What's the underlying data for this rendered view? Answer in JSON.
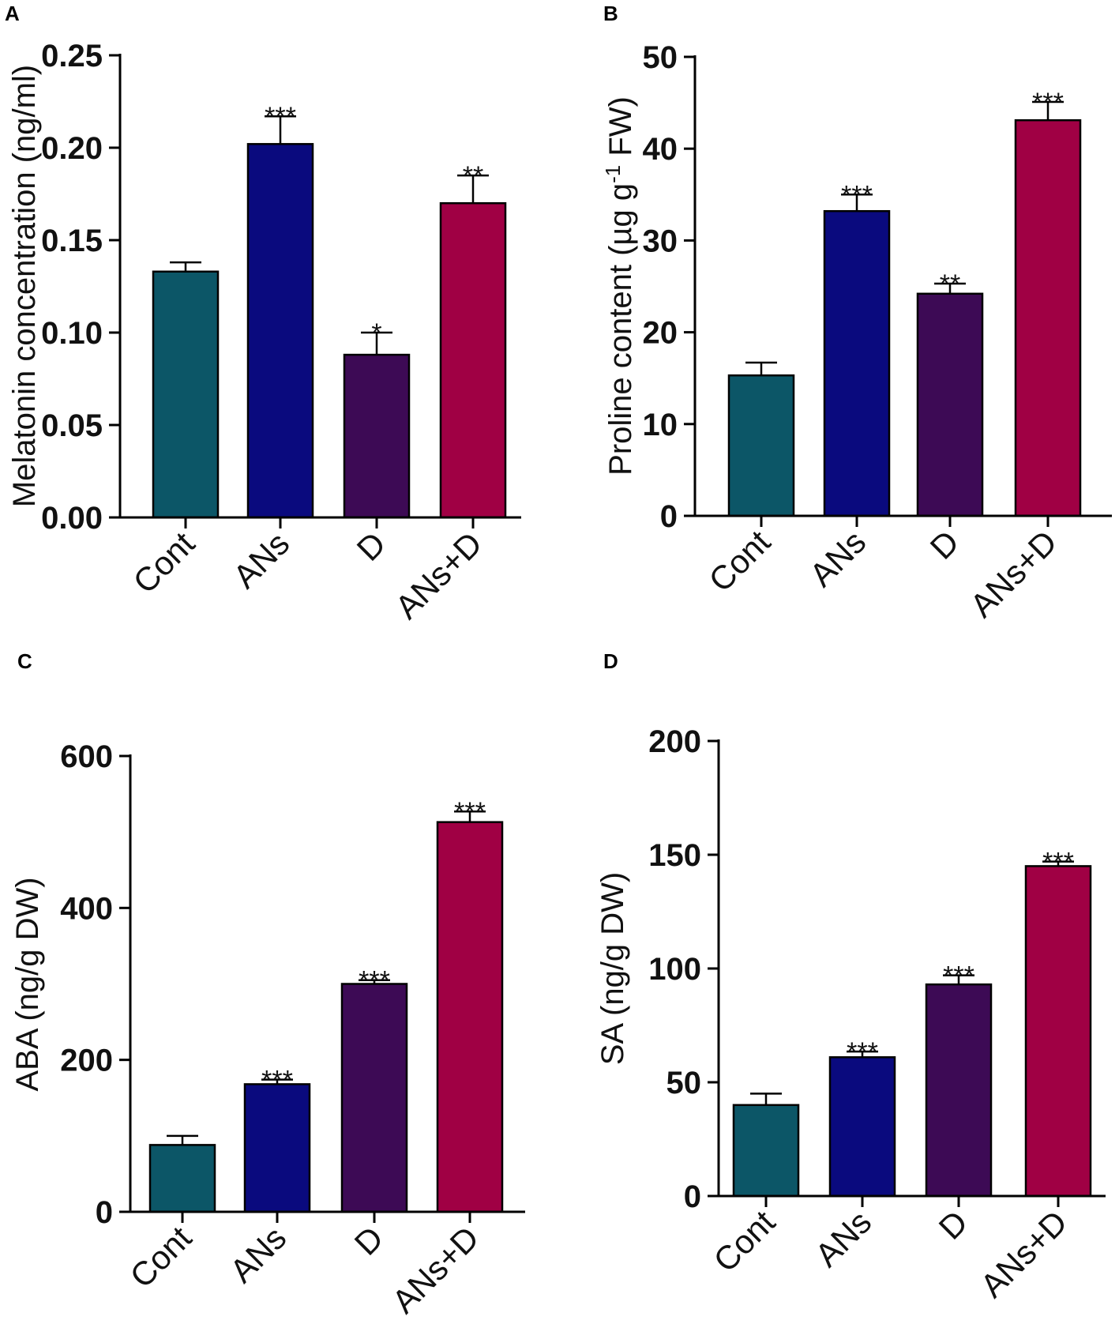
{
  "figure": {
    "categories": [
      "Cont",
      "ANs",
      "D",
      "ANs+D"
    ],
    "bar_colors": [
      "#0c5667",
      "#0a0a7e",
      "#3d0a55",
      "#a00044"
    ]
  },
  "chart_data": [
    {
      "panel": "A",
      "type": "bar",
      "categories": [
        "Cont",
        "ANs",
        "D",
        "ANs+D"
      ],
      "values": [
        0.133,
        0.202,
        0.088,
        0.17
      ],
      "errors": [
        0.005,
        0.015,
        0.012,
        0.015
      ],
      "significance": [
        "",
        "***",
        "*",
        "**"
      ],
      "ylabel": "Melatonin concentration (ng/ml)",
      "ylabel_parts": [
        {
          "text": "Melatonin concentration (ng/ml)",
          "sup": false
        }
      ],
      "ylim": [
        0,
        0.25
      ],
      "yticks": [
        0,
        0.05,
        0.1,
        0.15,
        0.2,
        0.25
      ],
      "ytick_labels": [
        "0.00",
        "0.05",
        "0.10",
        "0.15",
        "0.20",
        "0.25"
      ]
    },
    {
      "panel": "B",
      "type": "bar",
      "categories": [
        "Cont",
        "ANs",
        "D",
        "ANs+D"
      ],
      "values": [
        15.3,
        33.2,
        24.2,
        43.1
      ],
      "errors": [
        1.4,
        1.8,
        1.1,
        2.0
      ],
      "significance": [
        "",
        "***",
        "**",
        "***"
      ],
      "ylabel": "Proline content (µg g-1 FW)",
      "ylabel_parts": [
        {
          "text": "Proline content (µg g",
          "sup": false
        },
        {
          "text": "-1",
          "sup": true
        },
        {
          "text": " FW)",
          "sup": false
        }
      ],
      "ylim": [
        0,
        50
      ],
      "yticks": [
        0,
        10,
        20,
        30,
        40,
        50
      ],
      "ytick_labels": [
        "0",
        "10",
        "20",
        "30",
        "40",
        "50"
      ]
    },
    {
      "panel": "C",
      "type": "bar",
      "categories": [
        "Cont",
        "ANs",
        "D",
        "ANs+D"
      ],
      "values": [
        88,
        168,
        300,
        513
      ],
      "errors": [
        12,
        6,
        5,
        14
      ],
      "significance": [
        "",
        "***",
        "***",
        "***"
      ],
      "ylabel": "ABA (ng/g DW)",
      "ylabel_parts": [
        {
          "text": "ABA (ng/g DW)",
          "sup": false
        }
      ],
      "ylim": [
        0,
        600
      ],
      "yticks": [
        0,
        200,
        400,
        600
      ],
      "ytick_labels": [
        "0",
        "200",
        "400",
        "600"
      ]
    },
    {
      "panel": "D",
      "type": "bar",
      "categories": [
        "Cont",
        "ANs",
        "D",
        "ANs+D"
      ],
      "values": [
        40,
        61,
        93,
        145
      ],
      "errors": [
        5,
        2.5,
        4,
        2
      ],
      "significance": [
        "",
        "***",
        "***",
        "***"
      ],
      "ylabel": "SA (ng/g DW)",
      "ylabel_parts": [
        {
          "text": "SA (ng/g DW)",
          "sup": false
        }
      ],
      "ylim": [
        0,
        200
      ],
      "yticks": [
        0,
        50,
        100,
        150,
        200
      ],
      "ytick_labels": [
        "0",
        "50",
        "100",
        "150",
        "200"
      ]
    }
  ]
}
